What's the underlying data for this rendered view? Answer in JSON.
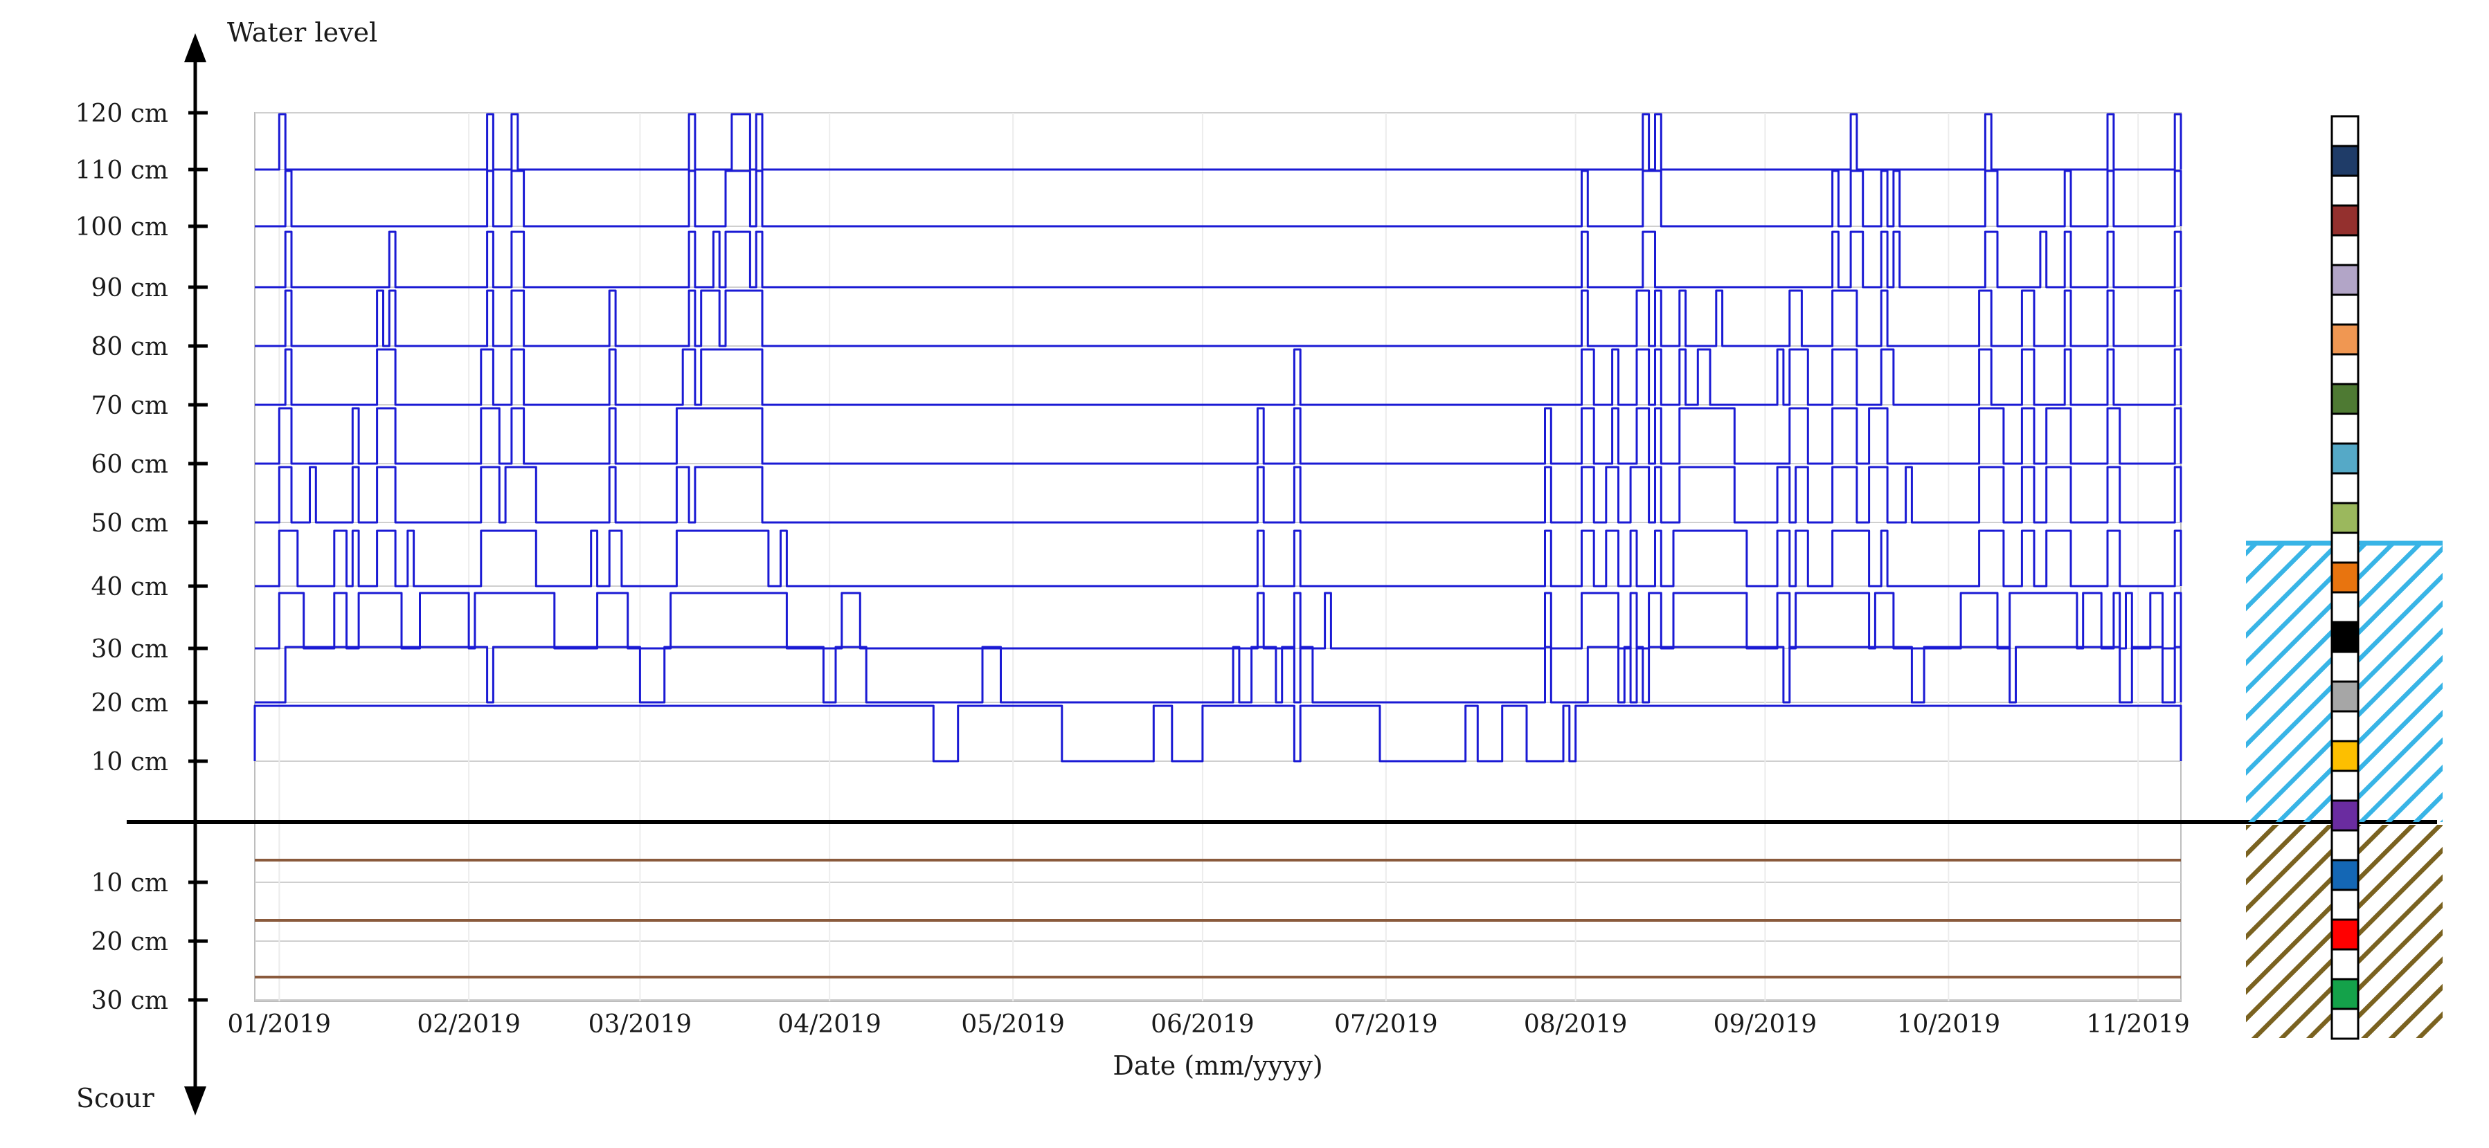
{
  "chart_data": {
    "type": "line",
    "y_axis_top_label": "Water level",
    "y_axis_bottom_label": "Scour",
    "xlabel": "Date (mm/yyyy)",
    "x_ticks": [
      "01/2019",
      "02/2019",
      "03/2019",
      "04/2019",
      "05/2019",
      "06/2019",
      "07/2019",
      "08/2019",
      "09/2019",
      "10/2019",
      "11/2019"
    ],
    "x_tick_dates": [
      "2019-01-01",
      "2019-02-01",
      "2019-03-01",
      "2019-04-01",
      "2019-05-01",
      "2019-06-01",
      "2019-07-01",
      "2019-08-01",
      "2019-09-01",
      "2019-10-01",
      "2019-11-01"
    ],
    "x_range": [
      "2018-12-28",
      "2019-11-08"
    ],
    "water_y_ticks": [
      "120 cm",
      "110 cm",
      "100 cm",
      "90 cm",
      "80 cm",
      "70 cm",
      "60 cm",
      "50 cm",
      "40 cm",
      "30 cm",
      "20 cm",
      "10 cm"
    ],
    "scour_y_ticks": [
      "10 cm",
      "20 cm",
      "30 cm"
    ],
    "water_sensor_levels_cm": [
      10,
      20,
      30,
      40,
      50,
      60,
      70,
      80,
      90,
      100,
      110
    ],
    "scour_sensor_depths_cm": [
      7,
      17,
      27
    ],
    "submerged_intervals": [
      {
        "sensor_cm": 110,
        "intervals": [
          [
            "2019-01-01",
            "2019-01-02"
          ],
          [
            "2019-02-04",
            "2019-02-05"
          ],
          [
            "2019-02-08",
            "2019-02-09"
          ],
          [
            "2019-03-09",
            "2019-03-10"
          ],
          [
            "2019-03-16",
            "2019-03-19"
          ],
          [
            "2019-03-20",
            "2019-03-21"
          ],
          [
            "2019-08-12",
            "2019-08-13"
          ],
          [
            "2019-08-14",
            "2019-08-15"
          ],
          [
            "2019-09-15",
            "2019-09-16"
          ],
          [
            "2019-10-07",
            "2019-10-08"
          ],
          [
            "2019-10-27",
            "2019-10-28"
          ],
          [
            "2019-11-07",
            "2019-11-08"
          ]
        ]
      },
      {
        "sensor_cm": 100,
        "intervals": [
          [
            "2019-01-02",
            "2019-01-03"
          ],
          [
            "2019-02-04",
            "2019-02-05"
          ],
          [
            "2019-02-08",
            "2019-02-10"
          ],
          [
            "2019-03-09",
            "2019-03-10"
          ],
          [
            "2019-03-15",
            "2019-03-19"
          ],
          [
            "2019-03-20",
            "2019-03-21"
          ],
          [
            "2019-08-02",
            "2019-08-03"
          ],
          [
            "2019-08-12",
            "2019-08-15"
          ],
          [
            "2019-09-12",
            "2019-09-13"
          ],
          [
            "2019-09-15",
            "2019-09-17"
          ],
          [
            "2019-09-20",
            "2019-09-21"
          ],
          [
            "2019-09-22",
            "2019-09-23"
          ],
          [
            "2019-10-07",
            "2019-10-09"
          ],
          [
            "2019-10-20",
            "2019-10-21"
          ],
          [
            "2019-10-27",
            "2019-10-28"
          ],
          [
            "2019-11-07",
            "2019-11-08"
          ]
        ]
      },
      {
        "sensor_cm": 90,
        "intervals": [
          [
            "2019-01-02",
            "2019-01-03"
          ],
          [
            "2019-01-19",
            "2019-01-20"
          ],
          [
            "2019-02-04",
            "2019-02-05"
          ],
          [
            "2019-02-08",
            "2019-02-10"
          ],
          [
            "2019-03-09",
            "2019-03-10"
          ],
          [
            "2019-03-13",
            "2019-03-14"
          ],
          [
            "2019-03-15",
            "2019-03-19"
          ],
          [
            "2019-03-20",
            "2019-03-21"
          ],
          [
            "2019-08-02",
            "2019-08-03"
          ],
          [
            "2019-08-12",
            "2019-08-14"
          ],
          [
            "2019-09-12",
            "2019-09-13"
          ],
          [
            "2019-09-15",
            "2019-09-17"
          ],
          [
            "2019-09-20",
            "2019-09-21"
          ],
          [
            "2019-09-22",
            "2019-09-23"
          ],
          [
            "2019-10-07",
            "2019-10-09"
          ],
          [
            "2019-10-16",
            "2019-10-17"
          ],
          [
            "2019-10-20",
            "2019-10-21"
          ],
          [
            "2019-10-27",
            "2019-10-28"
          ],
          [
            "2019-11-07",
            "2019-11-08"
          ]
        ]
      },
      {
        "sensor_cm": 80,
        "intervals": [
          [
            "2019-01-02",
            "2019-01-03"
          ],
          [
            "2019-01-17",
            "2019-01-18"
          ],
          [
            "2019-01-19",
            "2019-01-20"
          ],
          [
            "2019-02-04",
            "2019-02-05"
          ],
          [
            "2019-02-08",
            "2019-02-10"
          ],
          [
            "2019-02-24",
            "2019-02-25"
          ],
          [
            "2019-03-09",
            "2019-03-10"
          ],
          [
            "2019-03-11",
            "2019-03-14"
          ],
          [
            "2019-03-15",
            "2019-03-21"
          ],
          [
            "2019-08-02",
            "2019-08-03"
          ],
          [
            "2019-08-11",
            "2019-08-13"
          ],
          [
            "2019-08-14",
            "2019-08-15"
          ],
          [
            "2019-08-18",
            "2019-08-19"
          ],
          [
            "2019-08-24",
            "2019-08-25"
          ],
          [
            "2019-09-05",
            "2019-09-07"
          ],
          [
            "2019-09-12",
            "2019-09-16"
          ],
          [
            "2019-09-20",
            "2019-09-21"
          ],
          [
            "2019-10-06",
            "2019-10-08"
          ],
          [
            "2019-10-13",
            "2019-10-15"
          ],
          [
            "2019-10-20",
            "2019-10-21"
          ],
          [
            "2019-10-27",
            "2019-10-28"
          ],
          [
            "2019-11-07",
            "2019-11-08"
          ]
        ]
      },
      {
        "sensor_cm": 70,
        "intervals": [
          [
            "2019-01-02",
            "2019-01-03"
          ],
          [
            "2019-01-17",
            "2019-01-20"
          ],
          [
            "2019-02-03",
            "2019-02-05"
          ],
          [
            "2019-02-08",
            "2019-02-10"
          ],
          [
            "2019-02-24",
            "2019-02-25"
          ],
          [
            "2019-03-08",
            "2019-03-10"
          ],
          [
            "2019-03-11",
            "2019-03-21"
          ],
          [
            "2019-06-16",
            "2019-06-17"
          ],
          [
            "2019-08-02",
            "2019-08-04"
          ],
          [
            "2019-08-07",
            "2019-08-08"
          ],
          [
            "2019-08-11",
            "2019-08-13"
          ],
          [
            "2019-08-14",
            "2019-08-15"
          ],
          [
            "2019-08-18",
            "2019-08-19"
          ],
          [
            "2019-08-21",
            "2019-08-23"
          ],
          [
            "2019-09-03",
            "2019-09-04"
          ],
          [
            "2019-09-05",
            "2019-09-08"
          ],
          [
            "2019-09-12",
            "2019-09-16"
          ],
          [
            "2019-09-20",
            "2019-09-22"
          ],
          [
            "2019-10-06",
            "2019-10-08"
          ],
          [
            "2019-10-13",
            "2019-10-15"
          ],
          [
            "2019-10-20",
            "2019-10-21"
          ],
          [
            "2019-10-27",
            "2019-10-28"
          ],
          [
            "2019-11-07",
            "2019-11-08"
          ]
        ]
      },
      {
        "sensor_cm": 60,
        "intervals": [
          [
            "2019-01-01",
            "2019-01-03"
          ],
          [
            "2019-01-13",
            "2019-01-14"
          ],
          [
            "2019-01-17",
            "2019-01-20"
          ],
          [
            "2019-02-03",
            "2019-02-06"
          ],
          [
            "2019-02-08",
            "2019-02-10"
          ],
          [
            "2019-02-24",
            "2019-02-25"
          ],
          [
            "2019-03-07",
            "2019-03-21"
          ],
          [
            "2019-06-10",
            "2019-06-11"
          ],
          [
            "2019-06-16",
            "2019-06-17"
          ],
          [
            "2019-07-27",
            "2019-07-28"
          ],
          [
            "2019-08-02",
            "2019-08-04"
          ],
          [
            "2019-08-07",
            "2019-08-08"
          ],
          [
            "2019-08-11",
            "2019-08-13"
          ],
          [
            "2019-08-14",
            "2019-08-15"
          ],
          [
            "2019-08-18",
            "2019-08-27"
          ],
          [
            "2019-09-05",
            "2019-09-08"
          ],
          [
            "2019-09-12",
            "2019-09-16"
          ],
          [
            "2019-09-18",
            "2019-09-21"
          ],
          [
            "2019-10-06",
            "2019-10-10"
          ],
          [
            "2019-10-13",
            "2019-10-15"
          ],
          [
            "2019-10-17",
            "2019-10-21"
          ],
          [
            "2019-10-27",
            "2019-10-29"
          ],
          [
            "2019-11-07",
            "2019-11-08"
          ]
        ]
      },
      {
        "sensor_cm": 50,
        "intervals": [
          [
            "2019-01-01",
            "2019-01-03"
          ],
          [
            "2019-01-06",
            "2019-01-07"
          ],
          [
            "2019-01-13",
            "2019-01-14"
          ],
          [
            "2019-01-17",
            "2019-01-20"
          ],
          [
            "2019-02-03",
            "2019-02-06"
          ],
          [
            "2019-02-07",
            "2019-02-12"
          ],
          [
            "2019-02-24",
            "2019-02-25"
          ],
          [
            "2019-03-07",
            "2019-03-09"
          ],
          [
            "2019-03-10",
            "2019-03-21"
          ],
          [
            "2019-06-10",
            "2019-06-11"
          ],
          [
            "2019-06-16",
            "2019-06-17"
          ],
          [
            "2019-07-27",
            "2019-07-28"
          ],
          [
            "2019-08-02",
            "2019-08-04"
          ],
          [
            "2019-08-06",
            "2019-08-08"
          ],
          [
            "2019-08-10",
            "2019-08-13"
          ],
          [
            "2019-08-14",
            "2019-08-15"
          ],
          [
            "2019-08-18",
            "2019-08-27"
          ],
          [
            "2019-09-03",
            "2019-09-05"
          ],
          [
            "2019-09-06",
            "2019-09-08"
          ],
          [
            "2019-09-12",
            "2019-09-16"
          ],
          [
            "2019-09-18",
            "2019-09-21"
          ],
          [
            "2019-09-24",
            "2019-09-25"
          ],
          [
            "2019-10-06",
            "2019-10-10"
          ],
          [
            "2019-10-13",
            "2019-10-15"
          ],
          [
            "2019-10-17",
            "2019-10-21"
          ],
          [
            "2019-10-27",
            "2019-10-29"
          ],
          [
            "2019-11-07",
            "2019-11-08"
          ]
        ]
      },
      {
        "sensor_cm": 40,
        "intervals": [
          [
            "2019-01-01",
            "2019-01-04"
          ],
          [
            "2019-01-10",
            "2019-01-12"
          ],
          [
            "2019-01-13",
            "2019-01-14"
          ],
          [
            "2019-01-17",
            "2019-01-20"
          ],
          [
            "2019-01-22",
            "2019-01-23"
          ],
          [
            "2019-02-03",
            "2019-02-12"
          ],
          [
            "2019-02-21",
            "2019-02-22"
          ],
          [
            "2019-02-24",
            "2019-02-26"
          ],
          [
            "2019-03-07",
            "2019-03-22"
          ],
          [
            "2019-03-24",
            "2019-03-25"
          ],
          [
            "2019-06-10",
            "2019-06-11"
          ],
          [
            "2019-06-16",
            "2019-06-17"
          ],
          [
            "2019-07-27",
            "2019-07-28"
          ],
          [
            "2019-08-02",
            "2019-08-04"
          ],
          [
            "2019-08-06",
            "2019-08-08"
          ],
          [
            "2019-08-10",
            "2019-08-11"
          ],
          [
            "2019-08-14",
            "2019-08-15"
          ],
          [
            "2019-08-17",
            "2019-08-29"
          ],
          [
            "2019-09-03",
            "2019-09-05"
          ],
          [
            "2019-09-06",
            "2019-09-08"
          ],
          [
            "2019-09-12",
            "2019-09-18"
          ],
          [
            "2019-09-20",
            "2019-09-21"
          ],
          [
            "2019-10-06",
            "2019-10-10"
          ],
          [
            "2019-10-13",
            "2019-10-15"
          ],
          [
            "2019-10-17",
            "2019-10-21"
          ],
          [
            "2019-10-27",
            "2019-10-29"
          ],
          [
            "2019-11-07",
            "2019-11-08"
          ]
        ]
      },
      {
        "sensor_cm": 30,
        "intervals": [
          [
            "2019-01-01",
            "2019-01-05"
          ],
          [
            "2019-01-10",
            "2019-01-12"
          ],
          [
            "2019-01-14",
            "2019-01-21"
          ],
          [
            "2019-01-24",
            "2019-02-01"
          ],
          [
            "2019-02-02",
            "2019-02-15"
          ],
          [
            "2019-02-22",
            "2019-02-27"
          ],
          [
            "2019-03-06",
            "2019-03-25"
          ],
          [
            "2019-04-03",
            "2019-04-06"
          ],
          [
            "2019-06-10",
            "2019-06-11"
          ],
          [
            "2019-06-16",
            "2019-06-17"
          ],
          [
            "2019-06-21",
            "2019-06-22"
          ],
          [
            "2019-07-27",
            "2019-07-28"
          ],
          [
            "2019-08-02",
            "2019-08-08"
          ],
          [
            "2019-08-10",
            "2019-08-11"
          ],
          [
            "2019-08-13",
            "2019-08-15"
          ],
          [
            "2019-08-17",
            "2019-08-29"
          ],
          [
            "2019-09-03",
            "2019-09-05"
          ],
          [
            "2019-09-06",
            "2019-09-18"
          ],
          [
            "2019-09-19",
            "2019-09-22"
          ],
          [
            "2019-10-03",
            "2019-10-09"
          ],
          [
            "2019-10-11",
            "2019-10-22"
          ],
          [
            "2019-10-23",
            "2019-10-26"
          ],
          [
            "2019-10-28",
            "2019-10-29"
          ],
          [
            "2019-10-30",
            "2019-10-31"
          ],
          [
            "2019-11-03",
            "2019-11-05"
          ],
          [
            "2019-11-07",
            "2019-11-08"
          ]
        ]
      },
      {
        "sensor_cm": 20,
        "intervals": [
          [
            "2019-01-02",
            "2019-02-04"
          ],
          [
            "2019-02-05",
            "2019-03-01"
          ],
          [
            "2019-03-05",
            "2019-03-31"
          ],
          [
            "2019-04-02",
            "2019-04-07"
          ],
          [
            "2019-04-26",
            "2019-04-29"
          ],
          [
            "2019-06-06",
            "2019-06-07"
          ],
          [
            "2019-06-09",
            "2019-06-13"
          ],
          [
            "2019-06-14",
            "2019-06-16"
          ],
          [
            "2019-06-17",
            "2019-06-19"
          ],
          [
            "2019-07-27",
            "2019-07-28"
          ],
          [
            "2019-08-03",
            "2019-08-08"
          ],
          [
            "2019-08-09",
            "2019-08-10"
          ],
          [
            "2019-08-11",
            "2019-08-12"
          ],
          [
            "2019-08-13",
            "2019-09-04"
          ],
          [
            "2019-09-05",
            "2019-09-25"
          ],
          [
            "2019-09-27",
            "2019-10-11"
          ],
          [
            "2019-10-12",
            "2019-10-29"
          ],
          [
            "2019-10-31",
            "2019-11-05"
          ],
          [
            "2019-11-07",
            "2019-11-08"
          ]
        ]
      },
      {
        "sensor_cm": 10,
        "intervals": [
          [
            "2018-12-28",
            "2019-04-18"
          ],
          [
            "2019-04-22",
            "2019-05-09"
          ],
          [
            "2019-05-24",
            "2019-05-27"
          ],
          [
            "2019-06-01",
            "2019-06-16"
          ],
          [
            "2019-06-17",
            "2019-06-30"
          ],
          [
            "2019-07-14",
            "2019-07-16"
          ],
          [
            "2019-07-20",
            "2019-07-24"
          ],
          [
            "2019-07-30",
            "2019-07-31"
          ],
          [
            "2019-08-01",
            "2019-11-08"
          ]
        ]
      }
    ],
    "column_markers": [
      "#1f3c68",
      "#94302e",
      "#b2a5c7",
      "#f09752",
      "#4e7a33",
      "#55a9c7",
      "#9bb85d",
      "#e8740f",
      "#000000",
      "#a6a6a6",
      "#fdbf00",
      "#6a2ca0",
      "#1467b5",
      "#ff0000",
      "#14a24a"
    ],
    "colors": {
      "water_line": "#1a1ad4",
      "scour_line": "#8a5a3c",
      "water_hatch": "#38b4e6",
      "soil_hatch": "#7a6220",
      "grid": "#cfcfcf",
      "axis": "#000000"
    }
  }
}
